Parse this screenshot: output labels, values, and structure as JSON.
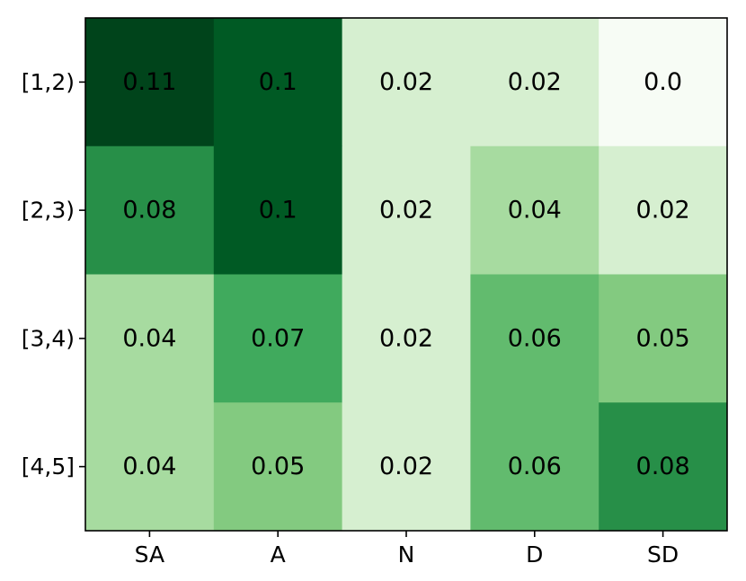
{
  "chart_data": {
    "type": "heatmap",
    "title": "",
    "xlabel": "",
    "ylabel": "",
    "x_categories": [
      "SA",
      "A",
      "N",
      "D",
      "SD"
    ],
    "y_categories": [
      "[1,2)",
      "[2,3)",
      "[3,4)",
      "[4,5]"
    ],
    "values": [
      [
        0.11,
        0.1,
        0.02,
        0.02,
        0.0
      ],
      [
        0.08,
        0.1,
        0.02,
        0.04,
        0.02
      ],
      [
        0.04,
        0.07,
        0.02,
        0.06,
        0.05
      ],
      [
        0.04,
        0.05,
        0.02,
        0.06,
        0.08
      ]
    ],
    "value_labels": [
      [
        "0.11",
        "0.1",
        "0.02",
        "0.02",
        "0.0"
      ],
      [
        "0.08",
        "0.1",
        "0.02",
        "0.04",
        "0.02"
      ],
      [
        "0.04",
        "0.07",
        "0.02",
        "0.06",
        "0.05"
      ],
      [
        "0.04",
        "0.05",
        "0.02",
        "0.06",
        "0.08"
      ]
    ],
    "colormap": "Greens",
    "colors": {
      "min": "#f7fcf5",
      "max": "#00441b"
    },
    "cell_colors": [
      [
        "#00441b",
        "#005a24",
        "#d6efd0",
        "#d6efd0",
        "#f7fcf5"
      ],
      [
        "#278f48",
        "#005a24",
        "#d6efd0",
        "#a7dba0",
        "#d6efd0"
      ],
      [
        "#a7dba0",
        "#40aa5d",
        "#d6efd0",
        "#62bb6e",
        "#83ca80"
      ],
      [
        "#a7dba0",
        "#83ca80",
        "#d6efd0",
        "#62bb6e",
        "#278f48"
      ]
    ],
    "grid": false,
    "legend": "none"
  }
}
